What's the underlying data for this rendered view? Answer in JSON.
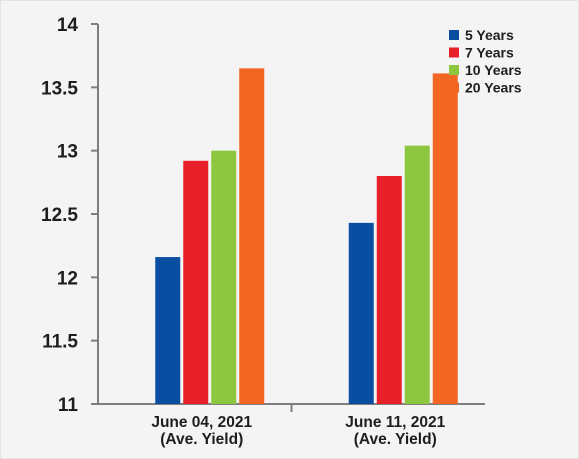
{
  "chart_data": {
    "type": "bar",
    "title": "",
    "xlabel": "",
    "ylabel": "",
    "categories": [
      [
        "June 04, 2021",
        "(Ave. Yield)"
      ],
      [
        "June 11, 2021",
        "(Ave. Yield)"
      ]
    ],
    "series": [
      {
        "name": "5 Years",
        "color": "#0a4ea2",
        "values": [
          12.16,
          12.43
        ]
      },
      {
        "name": "7 Years",
        "color": "#e8202a",
        "values": [
          12.92,
          12.8
        ]
      },
      {
        "name": "10 Years",
        "color": "#8dc63f",
        "values": [
          13.0,
          13.04
        ]
      },
      {
        "name": "20 Years",
        "color": "#f26522",
        "values": [
          13.65,
          13.61
        ]
      }
    ],
    "ylim": [
      11,
      14
    ],
    "yticks": [
      11,
      11.5,
      12,
      12.5,
      13,
      13.5,
      14
    ],
    "ytick_labels": [
      "11",
      "11.5",
      "12",
      "12.5",
      "13",
      "13.5",
      "14"
    ],
    "grid": false,
    "legend_position": "top-right",
    "colors": {
      "axis": "#7f7f7f",
      "text": "#1e1e1e",
      "background": "#f4f4f4"
    }
  }
}
